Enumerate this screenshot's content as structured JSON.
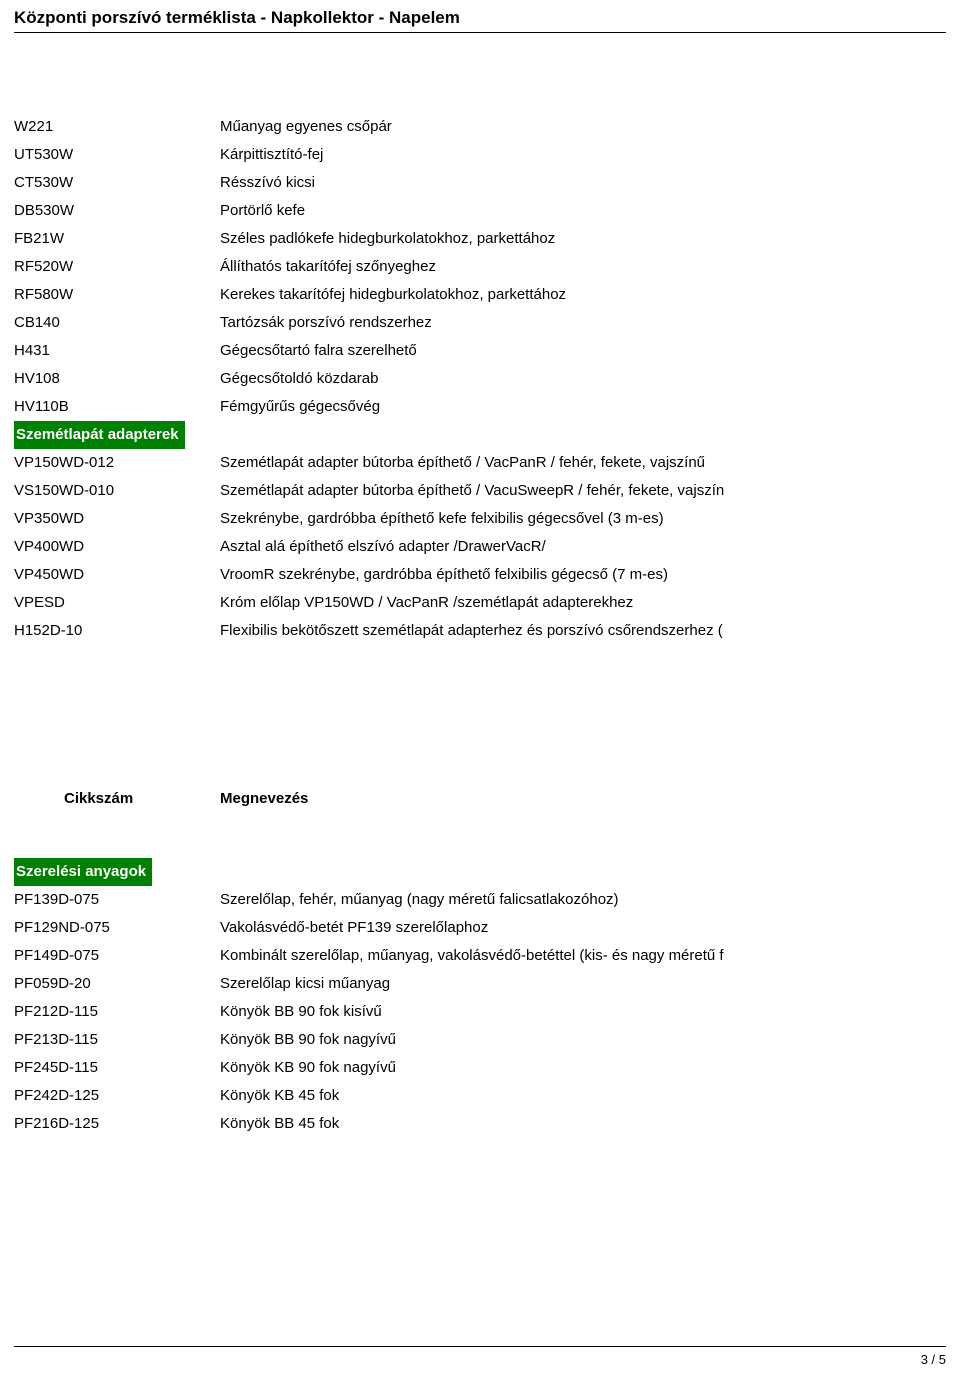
{
  "pageTitle": "Központi porszívó terméklista - Napkollektor - Napelem",
  "colors": {
    "sectionHeaderBg": "#008000",
    "sectionHeaderText": "#ffffff",
    "bodyText": "#000000",
    "background": "#ffffff",
    "divider": "#000000"
  },
  "columns": {
    "codeHeader": "Cikkszám",
    "descHeader": "Megnevezés"
  },
  "sections": [
    {
      "type": "rows",
      "rows": [
        {
          "code": "W221",
          "desc": "Műanyag egyenes csőpár"
        },
        {
          "code": "UT530W",
          "desc": "Kárpittisztító-fej"
        },
        {
          "code": "CT530W",
          "desc": "Résszívó kicsi"
        },
        {
          "code": "DB530W",
          "desc": "Portörlő kefe"
        },
        {
          "code": "FB21W",
          "desc": "Széles padlókefe hidegburkolatokhoz, parkettához"
        },
        {
          "code": "RF520W",
          "desc": "Állíthatós takarítófej szőnyeghez"
        },
        {
          "code": "RF580W",
          "desc": "Kerekes takarítófej hidegburkolatokhoz, parkettához"
        },
        {
          "code": "CB140",
          "desc": "Tartózsák porszívó rendszerhez"
        },
        {
          "code": "H431",
          "desc": "Gégecsőtartó falra szerelhető"
        },
        {
          "code": "HV108",
          "desc": "Gégecsőtoldó közdarab"
        },
        {
          "code": "HV110B",
          "desc": "Fémgyűrűs gégecsővég"
        }
      ]
    },
    {
      "type": "header",
      "label": "Szemétlapát adapterek"
    },
    {
      "type": "rows",
      "rows": [
        {
          "code": "VP150WD-012",
          "desc": "Szemétlapát adapter bútorba építhető / VacPanR / fehér, fekete, vajszínű"
        },
        {
          "code": "VS150WD-010",
          "desc": "Szemétlapát adapter bútorba építhető / VacuSweepR / fehér, fekete, vajszín"
        },
        {
          "code": "VP350WD",
          "desc": "Szekrénybe, gardróbba építhető kefe felxibilis gégecsővel (3 m-es)"
        },
        {
          "code": "VP400WD",
          "desc": "Asztal alá építhető elszívó adapter /DrawerVacR/"
        },
        {
          "code": "VP450WD",
          "desc": "VroomR szekrénybe, gardróbba építhető felxibilis gégecső (7 m-es)"
        },
        {
          "code": "VPESD",
          "desc": "Króm előlap VP150WD / VacPanR /szemétlapát adapterekhez"
        },
        {
          "code": "H152D-10",
          "desc": "Flexibilis bekötőszett szemétlapát adapterhez és porszívó csőrendszerhez ("
        }
      ]
    },
    {
      "type": "columnHeaders"
    },
    {
      "type": "header",
      "label": "Szerelési anyagok"
    },
    {
      "type": "rows",
      "rows": [
        {
          "code": "PF139D-075",
          "desc": "Szerelőlap, fehér, műanyag (nagy méretű falicsatlakozóhoz)"
        },
        {
          "code": "PF129ND-075",
          "desc": "Vakolásvédő-betét PF139 szerelőlaphoz"
        },
        {
          "code": "PF149D-075",
          "desc": "Kombinált szerelőlap, műanyag, vakolásvédő-betéttel (kis- és nagy méretű f"
        },
        {
          "code": "PF059D-20",
          "desc": "Szerelőlap kicsi műanyag"
        },
        {
          "code": "PF212D-115",
          "desc": "Könyök BB 90 fok kisívű"
        },
        {
          "code": "PF213D-115",
          "desc": "Könyök BB 90 fok nagyívű"
        },
        {
          "code": "PF245D-115",
          "desc": "Könyök KB 90 fok nagyívű"
        },
        {
          "code": "PF242D-125",
          "desc": "Könyök KB 45 fok"
        },
        {
          "code": "PF216D-125",
          "desc": "Könyök BB 45 fok"
        }
      ]
    }
  ],
  "pageNumber": "3 / 5"
}
